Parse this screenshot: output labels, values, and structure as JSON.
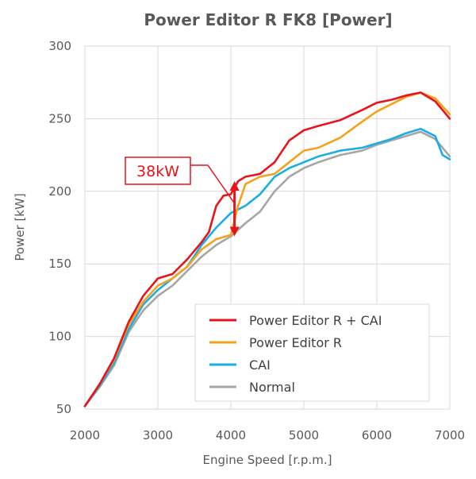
{
  "chart_data": {
    "type": "line",
    "title": "Power Editor R FK8 [Power]",
    "xlabel": "Engine Speed [r.p.m.]",
    "ylabel": "Power [kW]",
    "xlim": [
      2000,
      7000
    ],
    "ylim": [
      50,
      300
    ],
    "xticks": [
      "2000",
      "3000",
      "4000",
      "5000",
      "6000",
      "7000"
    ],
    "yticks": [
      "50",
      "100",
      "150",
      "200",
      "250",
      "300"
    ],
    "grid": true,
    "legend_position": "bottom-right",
    "series": [
      {
        "name": "Power Editor R + CAI",
        "color": "#e8141b",
        "x": [
          2000,
          2200,
          2400,
          2600,
          2800,
          3000,
          3200,
          3400,
          3600,
          3700,
          3800,
          3900,
          4000,
          4100,
          4200,
          4400,
          4600,
          4800,
          5000,
          5200,
          5500,
          5800,
          6000,
          6200,
          6400,
          6600,
          6800,
          7000
        ],
        "y": [
          52,
          67,
          85,
          110,
          128,
          140,
          143,
          153,
          165,
          172,
          190,
          197,
          198,
          207,
          210,
          212,
          220,
          235,
          242,
          245,
          249,
          256,
          261,
          263,
          266,
          268,
          262,
          250
        ]
      },
      {
        "name": "Power Editor R",
        "color": "#f5a11c",
        "x": [
          2000,
          2200,
          2400,
          2600,
          2800,
          3000,
          3200,
          3400,
          3600,
          3800,
          4000,
          4100,
          4200,
          4400,
          4600,
          4800,
          5000,
          5200,
          5500,
          5800,
          6000,
          6200,
          6400,
          6600,
          6800,
          7000
        ],
        "y": [
          52,
          67,
          84,
          108,
          124,
          135,
          140,
          148,
          160,
          167,
          170,
          190,
          205,
          210,
          212,
          220,
          228,
          230,
          237,
          248,
          255,
          260,
          265,
          268,
          264,
          253
        ]
      },
      {
        "name": "CAI",
        "color": "#1aaee6",
        "x": [
          2000,
          2200,
          2400,
          2600,
          2800,
          3000,
          3200,
          3400,
          3600,
          3800,
          4000,
          4200,
          4400,
          4600,
          4800,
          5000,
          5200,
          5500,
          5800,
          6000,
          6200,
          6400,
          6600,
          6800,
          6900,
          7000
        ],
        "y": [
          52,
          66,
          82,
          105,
          122,
          132,
          140,
          148,
          163,
          175,
          185,
          190,
          198,
          210,
          216,
          220,
          224,
          228,
          230,
          233,
          236,
          240,
          243,
          238,
          225,
          222
        ]
      },
      {
        "name": "Normal",
        "color": "#a6a6a6",
        "x": [
          2000,
          2200,
          2400,
          2600,
          2800,
          3000,
          3200,
          3400,
          3600,
          3800,
          4000,
          4200,
          4400,
          4600,
          4800,
          5000,
          5200,
          5500,
          5800,
          6000,
          6200,
          6400,
          6600,
          6800,
          7000
        ],
        "y": [
          52,
          65,
          80,
          103,
          118,
          128,
          135,
          145,
          155,
          163,
          169,
          178,
          186,
          200,
          210,
          216,
          220,
          225,
          228,
          232,
          235,
          238,
          241,
          236,
          224
        ]
      }
    ],
    "annotation": {
      "label": "38kW",
      "x": 4050,
      "y_top": 207,
      "y_bottom": 169,
      "color": "#e8141b"
    }
  }
}
